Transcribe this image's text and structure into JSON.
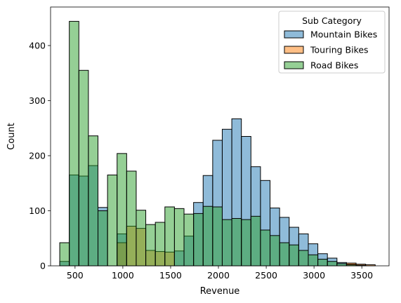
{
  "chart_data": {
    "type": "bar",
    "subtype": "histogram",
    "xlabel": "Revenue",
    "ylabel": "Count",
    "xlim": [
      244,
      3785
    ],
    "ylim": [
      0,
      470
    ],
    "xticks": [
      500,
      1000,
      1500,
      2000,
      2500,
      3000,
      3500
    ],
    "yticks": [
      0,
      100,
      200,
      300,
      400
    ],
    "bin_edges": [
      340,
      440,
      540,
      640,
      740,
      840,
      940,
      1040,
      1140,
      1240,
      1340,
      1440,
      1540,
      1640,
      1740,
      1840,
      1940,
      2040,
      2140,
      2240,
      2340,
      2440,
      2540,
      2640,
      2740,
      2840,
      2940,
      3040,
      3140,
      3240,
      3340,
      3440,
      3540,
      3640
    ],
    "grid": false,
    "legend": {
      "title": "Sub Category",
      "placement": "top-right"
    },
    "series": [
      {
        "name": "Mountain Bikes",
        "color": "#1f77b4",
        "values": [
          8,
          165,
          163,
          182,
          106,
          0,
          58,
          0,
          0,
          0,
          0,
          0,
          27,
          54,
          115,
          164,
          228,
          248,
          267,
          235,
          180,
          155,
          105,
          88,
          70,
          58,
          40,
          22,
          14,
          6,
          3,
          1,
          0
        ]
      },
      {
        "name": "Touring Bikes",
        "color": "#ff7f0e",
        "values": [
          0,
          0,
          0,
          0,
          0,
          0,
          42,
          72,
          68,
          28,
          26,
          25,
          0,
          0,
          0,
          0,
          0,
          0,
          0,
          0,
          0,
          0,
          0,
          0,
          0,
          0,
          0,
          0,
          0,
          0,
          5,
          3,
          2
        ]
      },
      {
        "name": "Road Bikes",
        "color": "#2ca02c",
        "values": [
          42,
          444,
          355,
          236,
          100,
          165,
          204,
          172,
          101,
          75,
          79,
          107,
          104,
          94,
          95,
          108,
          107,
          84,
          86,
          84,
          90,
          65,
          55,
          42,
          38,
          28,
          20,
          12,
          8,
          4,
          2,
          1,
          0
        ]
      }
    ]
  }
}
